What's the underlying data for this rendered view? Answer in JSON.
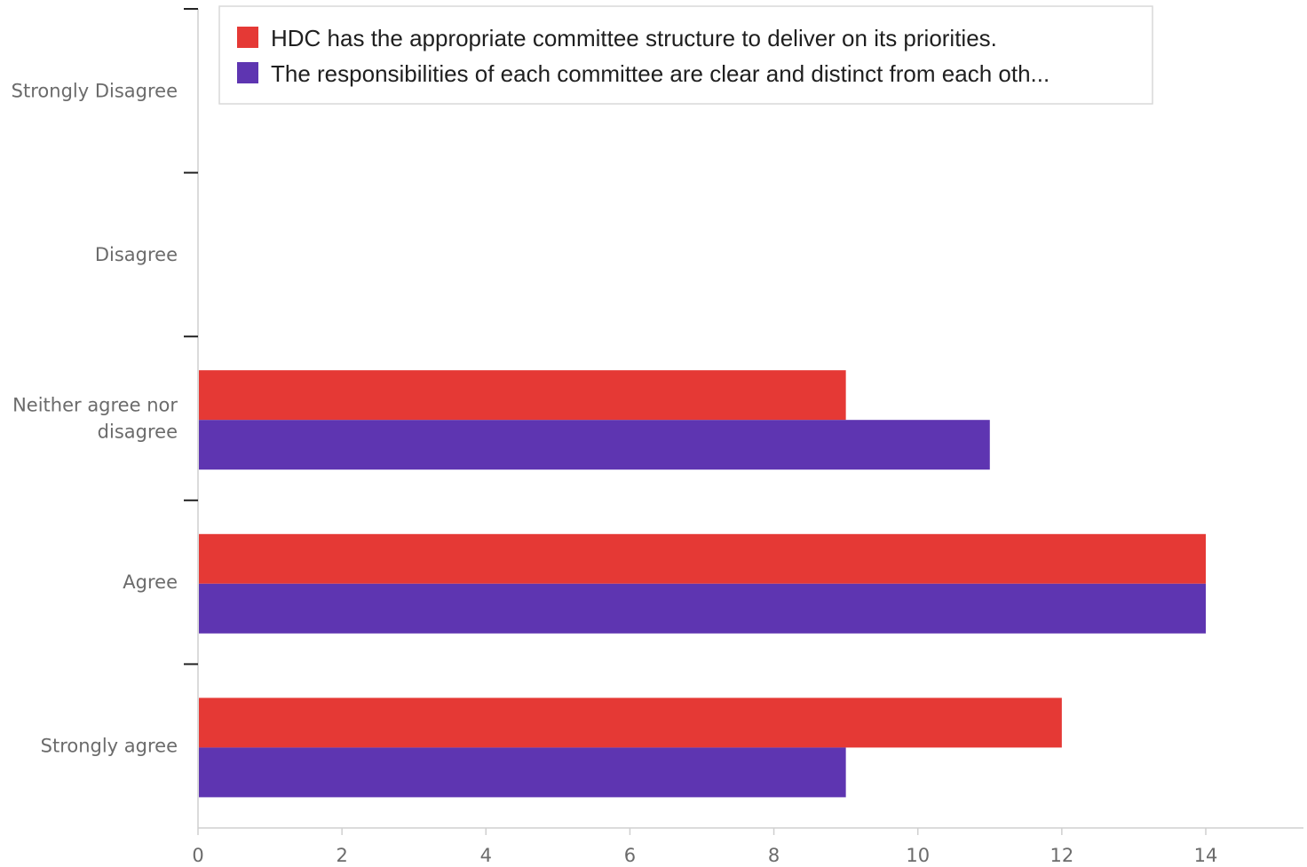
{
  "chart_data": {
    "type": "bar",
    "orientation": "horizontal",
    "categories": [
      "Strongly Disagree",
      "Disagree",
      "Neither agree nor disagree",
      "Agree",
      "Strongly agree"
    ],
    "series": [
      {
        "name": "HDC has the appropriate committee structure to deliver on its priorities.",
        "color": "#e53935",
        "values": [
          0,
          0,
          9,
          14,
          12
        ]
      },
      {
        "name": "The responsibilities of each committee are clear and distinct from each oth...",
        "color": "#5e35b1",
        "values": [
          0,
          0,
          11,
          14,
          9
        ]
      }
    ],
    "x_ticks": [
      "0",
      "2",
      "4",
      "6",
      "8",
      "10",
      "12",
      "14"
    ],
    "xlim": [
      0,
      15.4
    ],
    "grid": false,
    "legend_position": "top"
  }
}
